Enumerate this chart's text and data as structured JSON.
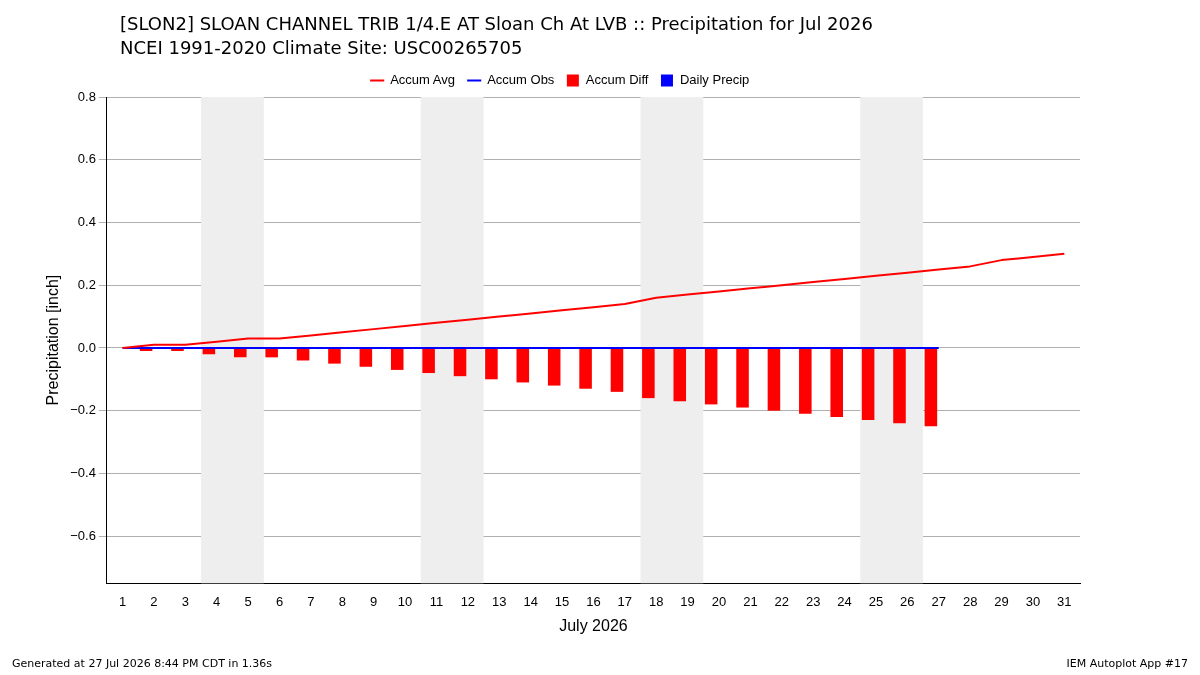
{
  "chart_data": {
    "type": "bar",
    "title": "[SLON2] SLOAN CHANNEL TRIB 1/4.E AT Sloan Ch At LVB :: Precipitation for Jul 2026",
    "subtitle": "NCEI 1991-2020 Climate Site: USC00265705",
    "xlabel": "July 2026",
    "ylabel": "Precipitation [inch]",
    "x": [
      1,
      2,
      3,
      4,
      5,
      6,
      7,
      8,
      9,
      10,
      11,
      12,
      13,
      14,
      15,
      16,
      17,
      18,
      19,
      20,
      21,
      22,
      23,
      24,
      25,
      26,
      27,
      28,
      29,
      30,
      31
    ],
    "xlim": [
      0.5,
      31.5
    ],
    "xticks": [
      1,
      2,
      3,
      4,
      5,
      6,
      7,
      8,
      9,
      10,
      11,
      12,
      13,
      14,
      15,
      16,
      17,
      18,
      19,
      20,
      21,
      22,
      23,
      24,
      25,
      26,
      27,
      28,
      29,
      30,
      31
    ],
    "ylim": [
      -0.75,
      0.8
    ],
    "yticks": [
      {
        "value": -0.6,
        "label": "−0.6"
      },
      {
        "value": -0.4,
        "label": "−0.4"
      },
      {
        "value": -0.2,
        "label": "−0.2"
      },
      {
        "value": 0,
        "label": "0.0"
      },
      {
        "value": 0.2,
        "label": "0.2"
      },
      {
        "value": 0.4,
        "label": "0.4"
      },
      {
        "value": 0.6,
        "label": "0.6"
      },
      {
        "value": 0.8,
        "label": "0.8"
      }
    ],
    "series": [
      {
        "name": "Accum Avg",
        "type": "line",
        "color": "#ff0000",
        "values": [
          0,
          0.01,
          0.01,
          0.02,
          0.03,
          0.03,
          0.04,
          0.05,
          0.06,
          0.07,
          0.08,
          0.09,
          0.1,
          0.11,
          0.12,
          0.13,
          0.14,
          0.16,
          0.17,
          0.18,
          0.19,
          0.2,
          0.21,
          0.22,
          0.23,
          0.24,
          0.25,
          0.26,
          0.28,
          0.29,
          0.3
        ]
      },
      {
        "name": "Accum Obs",
        "type": "line",
        "color": "#0000ff",
        "values": [
          0,
          0,
          0,
          0,
          0,
          0,
          0,
          0,
          0,
          0,
          0,
          0,
          0,
          0,
          0,
          0,
          0,
          0,
          0,
          0,
          0,
          0,
          0,
          0,
          0,
          0,
          0,
          null,
          null,
          null,
          null
        ]
      },
      {
        "name": "Accum Diff",
        "color": "#ff0000",
        "values": [
          0,
          -0.01,
          -0.01,
          -0.02,
          -0.03,
          -0.03,
          -0.04,
          -0.05,
          -0.06,
          -0.07,
          -0.08,
          -0.09,
          -0.1,
          -0.11,
          -0.12,
          -0.13,
          -0.14,
          -0.16,
          -0.17,
          -0.18,
          -0.19,
          -0.2,
          -0.21,
          -0.22,
          -0.23,
          -0.24,
          -0.25,
          null,
          null,
          null,
          null
        ]
      },
      {
        "name": "Daily Precip",
        "color": "#0000ff",
        "values": [
          0,
          0,
          0,
          0,
          0,
          0,
          0,
          0,
          0,
          0,
          0,
          0,
          0,
          0,
          0,
          0,
          0,
          0,
          0,
          0,
          0,
          0,
          0,
          0,
          0,
          0,
          0,
          null,
          null,
          null,
          null
        ]
      }
    ],
    "bands": [
      {
        "axis": "x",
        "from": 3.5,
        "to": 5.5,
        "color": "#eeeeee"
      },
      {
        "axis": "x",
        "from": 10.5,
        "to": 12.5,
        "color": "#eeeeee"
      },
      {
        "axis": "x",
        "from": 17.5,
        "to": 19.5,
        "color": "#eeeeee"
      },
      {
        "axis": "x",
        "from": 24.5,
        "to": 26.5,
        "color": "#eeeeee"
      }
    ],
    "grid": "y",
    "legend": "top",
    "marker": "none",
    "line_style": "solid",
    "annotations": [
      "Generated at 27 Jul 2026 8:44 PM CDT in 1.36s",
      "IEM Autoplot App #17"
    ]
  }
}
